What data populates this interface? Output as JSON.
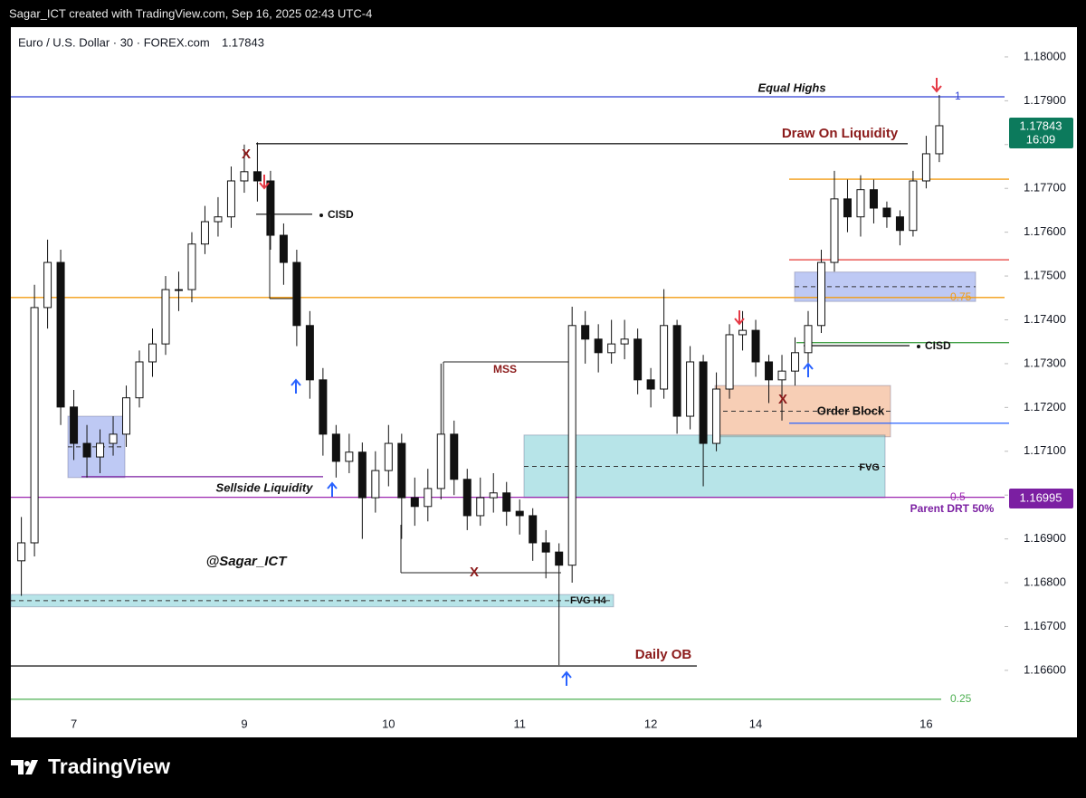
{
  "header": "Sagar_ICT created with TradingView.com, Sep 16, 2025 02:43 UTC-4",
  "footer": "TradingView",
  "chart_data": {
    "type": "candlestick",
    "title": "Euro / U.S. Dollar · 30 · FOREX.com",
    "last_price": 1.17843,
    "countdown": "16:09",
    "categories": [
      null,
      null,
      null,
      null,
      "7",
      null,
      null,
      null,
      null,
      null,
      null,
      null,
      null,
      null,
      null,
      null,
      null,
      "9",
      null,
      null,
      null,
      null,
      null,
      null,
      null,
      null,
      null,
      null,
      "10",
      null,
      null,
      null,
      null,
      null,
      null,
      null,
      null,
      null,
      "11",
      null,
      null,
      null,
      null,
      null,
      null,
      null,
      null,
      null,
      "12",
      null,
      null,
      null,
      null,
      null,
      null,
      null,
      "14",
      null,
      null,
      null,
      null,
      null,
      null,
      null,
      null,
      null,
      null,
      null,
      null,
      "16",
      null
    ],
    "open": [
      1.1685,
      1.16891,
      1.17428,
      1.17531,
      1.17201,
      1.17118,
      1.17087,
      1.17118,
      1.17139,
      1.17222,
      1.17304,
      1.17345,
      1.17469,
      1.17469,
      1.17573,
      1.17624,
      1.17635,
      1.17717,
      1.17738,
      1.17717,
      1.17593,
      1.17531,
      1.17387,
      1.17263,
      1.17139,
      1.17077,
      1.17098,
      1.16994,
      1.17056,
      1.17118,
      1.16994,
      1.16974,
      1.17015,
      1.17139,
      1.17036,
      1.16953,
      1.16994,
      1.17005,
      1.16963,
      1.16953,
      1.16891,
      1.1687,
      1.1684,
      1.17387,
      1.17356,
      1.17325,
      1.17345,
      1.17356,
      1.17263,
      1.17242,
      1.17387,
      1.1718,
      1.17304,
      1.17118,
      1.17242,
      1.17366,
      1.17376,
      1.17304,
      1.17263,
      1.17283,
      1.17325,
      1.17387,
      1.17531,
      1.17676,
      1.17635,
      1.17697,
      1.17655,
      1.17635,
      1.17604,
      1.17717,
      1.17779
    ],
    "high": [
      1.1695,
      1.1748,
      1.17583,
      1.1756,
      1.1724,
      1.1716,
      1.1715,
      1.1718,
      1.1725,
      1.1733,
      1.1738,
      1.175,
      1.1751,
      1.176,
      1.1766,
      1.1768,
      1.1775,
      1.178,
      1.17805,
      1.1774,
      1.1762,
      1.1756,
      1.1742,
      1.1729,
      1.1716,
      1.1714,
      1.1712,
      1.171,
      1.1716,
      1.1714,
      1.1704,
      1.1706,
      1.173,
      1.1717,
      1.1706,
      1.1704,
      1.1705,
      1.1703,
      1.1699,
      1.1697,
      1.1692,
      1.1689,
      1.1743,
      1.1742,
      1.1739,
      1.174,
      1.174,
      1.1738,
      1.1729,
      1.1747,
      1.174,
      1.1734,
      1.1732,
      1.1728,
      1.1739,
      1.1742,
      1.174,
      1.1732,
      1.1732,
      1.1736,
      1.1742,
      1.1756,
      1.1774,
      1.1772,
      1.1773,
      1.1772,
      1.1767,
      1.1765,
      1.1774,
      1.1782,
      1.17913
    ],
    "low": [
      1.1677,
      1.1686,
      1.1738,
      1.1716,
      1.1708,
      1.1704,
      1.1705,
      1.1709,
      1.1711,
      1.172,
      1.1727,
      1.1732,
      1.1742,
      1.1744,
      1.1755,
      1.1759,
      1.1761,
      1.1769,
      1.1767,
      1.1756,
      1.1748,
      1.1734,
      1.1722,
      1.1709,
      1.1704,
      1.1705,
      1.169,
      1.1696,
      1.1702,
      1.169,
      1.1693,
      1.1694,
      1.1699,
      1.17,
      1.1692,
      1.1693,
      1.1696,
      1.1693,
      1.1691,
      1.1685,
      1.1681,
      1.16612,
      1.168,
      1.173,
      1.1728,
      1.173,
      1.1731,
      1.1723,
      1.172,
      1.1722,
      1.1714,
      1.1715,
      1.1702,
      1.171,
      1.1722,
      1.1733,
      1.1727,
      1.1721,
      1.1717,
      1.1725,
      1.173,
      1.1737,
      1.1751,
      1.176,
      1.1759,
      1.1762,
      1.1761,
      1.1757,
      1.1759,
      1.177,
      1.1776
    ],
    "close": [
      1.16891,
      1.17428,
      1.17531,
      1.17201,
      1.17118,
      1.17087,
      1.17118,
      1.17139,
      1.17222,
      1.17304,
      1.17345,
      1.17469,
      1.17469,
      1.17573,
      1.17624,
      1.17635,
      1.17717,
      1.17738,
      1.17717,
      1.17593,
      1.17531,
      1.17387,
      1.17263,
      1.17139,
      1.17077,
      1.17098,
      1.16994,
      1.17056,
      1.17118,
      1.16994,
      1.16974,
      1.17015,
      1.17139,
      1.17036,
      1.16953,
      1.16994,
      1.17005,
      1.16963,
      1.16953,
      1.16891,
      1.1687,
      1.1684,
      1.17387,
      1.17356,
      1.17325,
      1.17345,
      1.17356,
      1.17263,
      1.17242,
      1.17387,
      1.1718,
      1.17304,
      1.17118,
      1.17242,
      1.17366,
      1.17376,
      1.17304,
      1.17263,
      1.17283,
      1.17325,
      1.17387,
      1.17531,
      1.17676,
      1.17635,
      1.17697,
      1.17655,
      1.17635,
      1.17604,
      1.17717,
      1.17779,
      1.17843
    ],
    "up_color": "#ffffff",
    "down_color": "#111111",
    "wick_color": "#111111",
    "ylim": [
      1.16447,
      1.18068
    ],
    "yticks": [
      {
        "value": 1.166,
        "label": "1.16600"
      },
      {
        "value": 1.167,
        "label": "1.16700"
      },
      {
        "value": 1.168,
        "label": "1.16800"
      },
      {
        "value": 1.169,
        "label": "1.16900"
      },
      {
        "value": 1.17,
        "label": "1.17000"
      },
      {
        "value": 1.171,
        "label": "1.17100"
      },
      {
        "value": 1.172,
        "label": "1.17200"
      },
      {
        "value": 1.173,
        "label": "1.17300"
      },
      {
        "value": 1.174,
        "label": "1.17400"
      },
      {
        "value": 1.175,
        "label": "1.17500"
      },
      {
        "value": 1.176,
        "label": "1.17600"
      },
      {
        "value": 1.177,
        "label": "1.17700"
      },
      {
        "value": 1.178,
        "label": "1.17800"
      },
      {
        "value": 1.179,
        "label": "1.17900"
      },
      {
        "value": 1.18,
        "label": "1.18000"
      }
    ],
    "grid": false,
    "fib_levels": [
      {
        "ratio": 1,
        "price": 1.17909,
        "color": "#2d3fd3"
      },
      {
        "ratio": 0.75,
        "price": 1.17451,
        "color": "#f39c12"
      },
      {
        "ratio": 0.5,
        "price": 1.16995,
        "color": "#9c27b0"
      },
      {
        "ratio": 0.25,
        "price": 1.16534,
        "color": "#4caf50"
      }
    ],
    "hlines": [
      {
        "price": 1.17721,
        "color": "#f39c12"
      },
      {
        "price": 1.17537,
        "color": "#e53935"
      },
      {
        "price": 1.17348,
        "color": "#43a047"
      },
      {
        "price": 1.17164,
        "color": "#2962ff"
      },
      {
        "price": 1.17802,
        "color": "#222222"
      },
      {
        "price": 1.17641,
        "color": "#222222"
      },
      {
        "price": 1.1661,
        "color": "#222222"
      },
      {
        "price": 1.17042,
        "color": "#7b1fa2"
      },
      {
        "price": 1.17341,
        "color": "#222222"
      }
    ],
    "boxes": [
      {
        "top": 1.1718,
        "bottom": 1.1704,
        "color": "rgba(110,135,230,0.45)"
      },
      {
        "top": 1.17509,
        "bottom": 1.17442,
        "color": "rgba(110,135,230,0.45)"
      },
      {
        "top": 1.1725,
        "bottom": 1.17133,
        "color": "rgba(240,165,120,0.55)"
      },
      {
        "top": 1.17137,
        "bottom": 1.16994,
        "color": "rgba(95,195,205,0.45)"
      },
      {
        "top": 1.16773,
        "bottom": 1.16745,
        "color": "rgba(95,195,205,0.45)"
      }
    ],
    "annotations": [
      "Equal Highs",
      "Draw On Liquidity",
      "CISD",
      "MSS",
      "Sellside Liquidity",
      "@Sagar_ICT",
      "X",
      "X",
      "X",
      "FVG H4",
      "Daily OB",
      "Order Block",
      "FVG",
      "CISD",
      "Parent DRT 50%"
    ]
  }
}
